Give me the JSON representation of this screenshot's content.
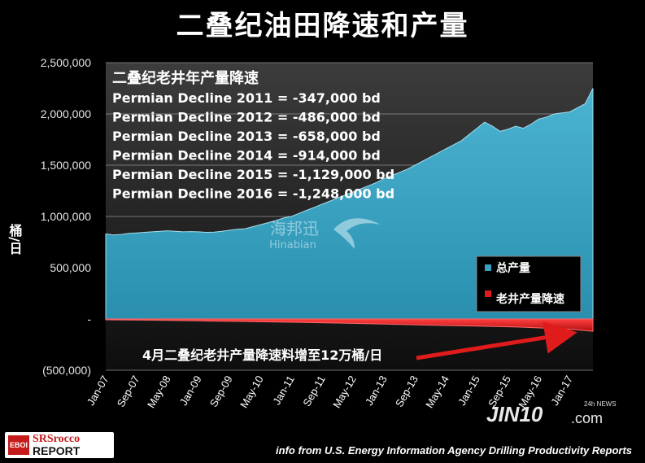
{
  "title": "二叠纪油田降速和产量",
  "source_note": "info from U.S. Energy Information Agency Drilling Productivity Reports",
  "watermark": {
    "cn": "海邦迅",
    "en": "Hinabian"
  },
  "logo": {
    "mark": "EBOI",
    "line1": "SRSrocco",
    "line2": "REPORT"
  },
  "jin10": {
    "main": "JIN10",
    "suffix": ".com",
    "tag": "24h NEWS"
  },
  "colors": {
    "production": "#3aa0c0",
    "decline": "#e01b1b",
    "plot_bg": "#000000",
    "grid": "#9a9a9a"
  },
  "chart_data": {
    "type": "area",
    "ylabel": "桶/日",
    "ylim": [
      -500000,
      2500000
    ],
    "yticks": [
      -500000,
      0,
      500000,
      1000000,
      1500000,
      2000000,
      2500000
    ],
    "ytick_labels": [
      "(500,000)",
      "-",
      "500,000",
      "1,000,000",
      "1,500,000",
      "2,000,000",
      "2,500,000"
    ],
    "x_tick_labels": [
      "Jan-07",
      "Sep-07",
      "May-08",
      "Jan-09",
      "Sep-09",
      "May-10",
      "Jan-11",
      "Sep-11",
      "May-12",
      "Jan-13",
      "Sep-13",
      "May-14",
      "Jan-15",
      "Sep-15",
      "May-16",
      "Jan-17"
    ],
    "x_tick_months": [
      0,
      8,
      16,
      24,
      32,
      40,
      48,
      56,
      64,
      72,
      80,
      88,
      96,
      104,
      112,
      120
    ],
    "grid": true,
    "legend_position": "bottom-right",
    "series": [
      {
        "name": "总产量",
        "kind": "area",
        "color": "#3aa0c0",
        "x": [
          0,
          2,
          4,
          6,
          8,
          10,
          12,
          14,
          16,
          18,
          20,
          22,
          24,
          26,
          28,
          30,
          32,
          34,
          36,
          38,
          40,
          42,
          44,
          46,
          48,
          50,
          52,
          54,
          56,
          58,
          60,
          62,
          64,
          66,
          68,
          70,
          72,
          74,
          76,
          78,
          80,
          82,
          84,
          86,
          88,
          90,
          92,
          94,
          96,
          98,
          100,
          102,
          104,
          106,
          108,
          110,
          112,
          114,
          116,
          118,
          120,
          122,
          124,
          126
        ],
        "values": [
          830000,
          820000,
          825000,
          835000,
          840000,
          845000,
          850000,
          855000,
          860000,
          855000,
          850000,
          852000,
          850000,
          845000,
          848000,
          855000,
          865000,
          875000,
          880000,
          900000,
          920000,
          940000,
          960000,
          985000,
          1000000,
          1030000,
          1060000,
          1090000,
          1120000,
          1150000,
          1180000,
          1210000,
          1240000,
          1270000,
          1300000,
          1330000,
          1370000,
          1400000,
          1430000,
          1460000,
          1500000,
          1540000,
          1580000,
          1620000,
          1660000,
          1700000,
          1740000,
          1800000,
          1860000,
          1920000,
          1880000,
          1830000,
          1850000,
          1880000,
          1860000,
          1900000,
          1950000,
          1970000,
          2000000,
          2010000,
          2020000,
          2060000,
          2100000,
          2250000
        ]
      },
      {
        "name": "老井产量降速",
        "kind": "area",
        "color": "#e01b1b",
        "x": [
          0,
          12,
          24,
          36,
          48,
          60,
          72,
          84,
          96,
          108,
          120,
          126
        ],
        "values": [
          -8000,
          -12000,
          -18000,
          -25000,
          -32000,
          -40000,
          -50000,
          -60000,
          -70000,
          -80000,
          -100000,
          -120000
        ]
      }
    ],
    "annotations": {
      "box_title": "二叠纪老井年产量降速",
      "lines": [
        "Permian Decline 2011 = -347,000 bd",
        "Permian Decline 2012 = -486,000 bd",
        "Permian Decline 2013 = -658,000 bd",
        "Permian Decline 2014 = -914,000 bd",
        "Permian Decline 2015 = -1,129,000 bd",
        "Permian Decline 2016 = -1,248,000 bd"
      ],
      "arrow_text": "4月二叠纪老井产量降速料增至12万桶/日"
    }
  }
}
